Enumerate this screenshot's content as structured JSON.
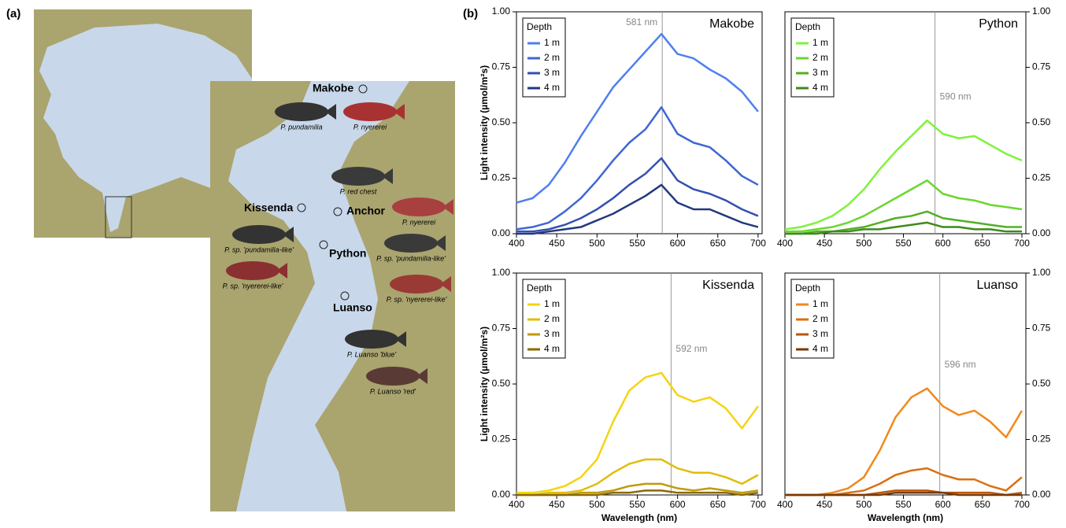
{
  "map": {
    "panel_label": "(a)",
    "sites": [
      "Makobe",
      "Kissenda",
      "Anchor",
      "Python",
      "Luanso"
    ],
    "species": [
      "P. pundamilia",
      "P. nyererei",
      "P. red chest",
      "P. nyererei",
      "P. sp. 'pundamilia-like'",
      "P. sp. 'pundamilia-like'",
      "P. sp. 'nyererei-like'",
      "P. sp. 'nyererei-like'",
      "P. Luanso 'blue'",
      "P. Luanso 'red'"
    ]
  },
  "panel_label": "(b)",
  "chart_data": [
    {
      "type": "line",
      "title": "Makobe",
      "ylabel": "Light intensity (µmol/m²s)",
      "legend_title": "Depth",
      "legend": "upper left",
      "yaxis_side": "left",
      "peak": {
        "x": 581,
        "label": "581 nm"
      },
      "x": [
        400,
        420,
        440,
        460,
        480,
        500,
        520,
        540,
        560,
        580,
        600,
        620,
        640,
        660,
        680,
        700
      ],
      "xlim": [
        400,
        705
      ],
      "xticks": [
        400,
        450,
        500,
        550,
        600,
        650,
        700
      ],
      "ylim": [
        0,
        1
      ],
      "yticks": [
        {
          "value": 0,
          "label": "0.00"
        },
        {
          "value": 0.25,
          "label": "0.25"
        },
        {
          "value": 0.5,
          "label": "0.50"
        },
        {
          "value": 0.75,
          "label": "0.75"
        },
        {
          "value": 1,
          "label": "1.00"
        }
      ],
      "series": [
        {
          "name": "1 m",
          "color": "#4f7ff0",
          "values": [
            0.14,
            0.16,
            0.22,
            0.32,
            0.44,
            0.55,
            0.66,
            0.74,
            0.82,
            0.9,
            0.81,
            0.79,
            0.74,
            0.7,
            0.64,
            0.55
          ]
        },
        {
          "name": "2 m",
          "color": "#3f66d6",
          "values": [
            0.02,
            0.03,
            0.05,
            0.1,
            0.16,
            0.24,
            0.33,
            0.41,
            0.47,
            0.57,
            0.45,
            0.41,
            0.39,
            0.33,
            0.26,
            0.22
          ]
        },
        {
          "name": "3 m",
          "color": "#3350b0",
          "values": [
            0.01,
            0.01,
            0.02,
            0.04,
            0.07,
            0.11,
            0.16,
            0.22,
            0.27,
            0.34,
            0.24,
            0.2,
            0.18,
            0.15,
            0.11,
            0.08
          ]
        },
        {
          "name": "4 m",
          "color": "#22397f",
          "values": [
            0,
            0,
            0.01,
            0.02,
            0.03,
            0.06,
            0.09,
            0.13,
            0.17,
            0.22,
            0.14,
            0.11,
            0.11,
            0.08,
            0.05,
            0.03
          ]
        }
      ]
    },
    {
      "type": "line",
      "title": "Python",
      "legend_title": "Depth",
      "legend": "upper left",
      "yaxis_side": "right",
      "peak": {
        "x": 590,
        "label": "590 nm"
      },
      "x": [
        400,
        420,
        440,
        460,
        480,
        500,
        520,
        540,
        560,
        580,
        600,
        620,
        640,
        660,
        680,
        700
      ],
      "xlim": [
        400,
        705
      ],
      "xticks": [
        400,
        450,
        500,
        550,
        600,
        650,
        700
      ],
      "ylim": [
        0,
        1
      ],
      "yticks": [
        {
          "value": 0,
          "label": "0.00"
        },
        {
          "value": 0.25,
          "label": "0.25"
        },
        {
          "value": 0.5,
          "label": "0.50"
        },
        {
          "value": 0.75,
          "label": "0.75"
        },
        {
          "value": 1,
          "label": "1.00"
        }
      ],
      "series": [
        {
          "name": "1 m",
          "color": "#7ff23a",
          "values": [
            0.02,
            0.03,
            0.05,
            0.08,
            0.13,
            0.2,
            0.29,
            0.37,
            0.44,
            0.51,
            0.45,
            0.43,
            0.44,
            0.4,
            0.36,
            0.33
          ]
        },
        {
          "name": "2 m",
          "color": "#6ad62f",
          "values": [
            0.01,
            0.01,
            0.02,
            0.03,
            0.05,
            0.08,
            0.12,
            0.16,
            0.2,
            0.24,
            0.18,
            0.16,
            0.15,
            0.13,
            0.12,
            0.11
          ]
        },
        {
          "name": "3 m",
          "color": "#52b024",
          "values": [
            0,
            0,
            0.01,
            0.01,
            0.02,
            0.03,
            0.05,
            0.07,
            0.08,
            0.1,
            0.07,
            0.06,
            0.05,
            0.04,
            0.03,
            0.03
          ]
        },
        {
          "name": "4 m",
          "color": "#3e8a1a",
          "values": [
            0,
            0,
            0,
            0.01,
            0.01,
            0.02,
            0.02,
            0.03,
            0.04,
            0.05,
            0.03,
            0.03,
            0.02,
            0.02,
            0.01,
            0.01
          ]
        }
      ]
    },
    {
      "type": "line",
      "title": "Kissenda",
      "ylabel": "Light intensity (µmol/m²s)",
      "xlabel": "Wavelength (nm)",
      "legend_title": "Depth",
      "legend": "upper left",
      "yaxis_side": "left",
      "peak": {
        "x": 592,
        "label": "592 nm"
      },
      "x": [
        400,
        420,
        440,
        460,
        480,
        500,
        520,
        540,
        560,
        580,
        600,
        620,
        640,
        660,
        680,
        700
      ],
      "xlim": [
        400,
        705
      ],
      "xticks": [
        400,
        450,
        500,
        550,
        600,
        650,
        700
      ],
      "ylim": [
        0,
        1
      ],
      "yticks": [
        {
          "value": 0,
          "label": "0.00"
        },
        {
          "value": 0.25,
          "label": "0.25"
        },
        {
          "value": 0.5,
          "label": "0.50"
        },
        {
          "value": 0.75,
          "label": "0.75"
        },
        {
          "value": 1,
          "label": "1.00"
        }
      ],
      "series": [
        {
          "name": "1 m",
          "color": "#f5d410",
          "values": [
            0.01,
            0.01,
            0.02,
            0.04,
            0.08,
            0.16,
            0.33,
            0.47,
            0.53,
            0.55,
            0.45,
            0.42,
            0.44,
            0.39,
            0.3,
            0.4
          ]
        },
        {
          "name": "2 m",
          "color": "#e0bd0c",
          "values": [
            0,
            0,
            0.01,
            0.01,
            0.02,
            0.05,
            0.1,
            0.14,
            0.16,
            0.16,
            0.12,
            0.1,
            0.1,
            0.08,
            0.05,
            0.09
          ]
        },
        {
          "name": "3 m",
          "color": "#c09a0a",
          "values": [
            0,
            0,
            0,
            0,
            0.01,
            0.01,
            0.02,
            0.04,
            0.05,
            0.05,
            0.03,
            0.02,
            0.03,
            0.02,
            0.01,
            0.02
          ]
        },
        {
          "name": "4 m",
          "color": "#8a6a06",
          "values": [
            0,
            0,
            0,
            0,
            0,
            0,
            0.01,
            0.01,
            0.02,
            0.02,
            0.01,
            0.01,
            0.01,
            0.01,
            0,
            0.01
          ]
        }
      ]
    },
    {
      "type": "line",
      "title": "Luanso",
      "xlabel": "Wavelength (nm)",
      "legend_title": "Depth",
      "legend": "upper left",
      "yaxis_side": "right",
      "peak": {
        "x": 596,
        "label": "596 nm"
      },
      "x": [
        400,
        420,
        440,
        460,
        480,
        500,
        520,
        540,
        560,
        580,
        600,
        620,
        640,
        660,
        680,
        700
      ],
      "xlim": [
        400,
        705
      ],
      "xticks": [
        400,
        450,
        500,
        550,
        600,
        650,
        700
      ],
      "ylim": [
        0,
        1
      ],
      "yticks": [
        {
          "value": 0,
          "label": "0.00"
        },
        {
          "value": 0.25,
          "label": "0.25"
        },
        {
          "value": 0.5,
          "label": "0.50"
        },
        {
          "value": 0.75,
          "label": "0.75"
        },
        {
          "value": 1,
          "label": "1.00"
        }
      ],
      "series": [
        {
          "name": "1 m",
          "color": "#f08a1e",
          "values": [
            0,
            0,
            0,
            0.01,
            0.03,
            0.08,
            0.2,
            0.35,
            0.44,
            0.48,
            0.4,
            0.36,
            0.38,
            0.33,
            0.26,
            0.38
          ]
        },
        {
          "name": "2 m",
          "color": "#d97012",
          "values": [
            0,
            0,
            0,
            0,
            0.01,
            0.02,
            0.05,
            0.09,
            0.11,
            0.12,
            0.09,
            0.07,
            0.07,
            0.04,
            0.02,
            0.08
          ]
        },
        {
          "name": "3 m",
          "color": "#b8560c",
          "values": [
            0,
            0,
            0,
            0,
            0,
            0,
            0.01,
            0.02,
            0.02,
            0.02,
            0.01,
            0.01,
            0.01,
            0.01,
            0,
            0.01
          ]
        },
        {
          "name": "4 m",
          "color": "#7a3a06",
          "values": [
            0,
            0,
            0,
            0,
            0,
            0,
            0,
            0.01,
            0.01,
            0.01,
            0.01,
            0,
            0,
            0,
            0,
            0
          ]
        }
      ]
    }
  ]
}
